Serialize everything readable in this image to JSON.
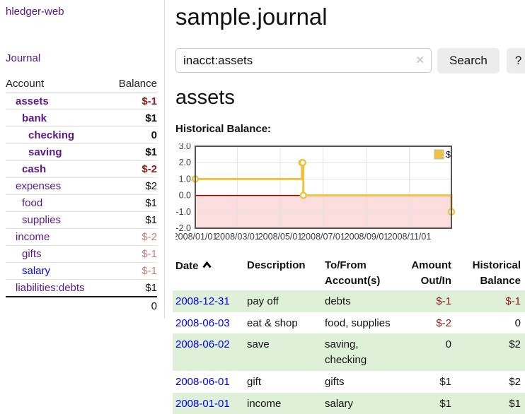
{
  "app": {
    "title": "hledger-web"
  },
  "sidebar": {
    "journal_link": "Journal",
    "accounts_table": {
      "headers": {
        "account": "Account",
        "balance": "Balance"
      },
      "rows": [
        {
          "name": "assets",
          "depth": 1,
          "bold": true,
          "balance": "$-1"
        },
        {
          "name": "bank",
          "depth": 2,
          "bold": true,
          "balance": "$1"
        },
        {
          "name": "checking",
          "depth": 3,
          "bold": true,
          "balance": "0"
        },
        {
          "name": "saving",
          "depth": 3,
          "bold": true,
          "balance": "$1"
        },
        {
          "name": "cash",
          "depth": 2,
          "bold": true,
          "balance": "$-2"
        },
        {
          "name": "expenses",
          "depth": 1,
          "bold": false,
          "balance": "$2"
        },
        {
          "name": "food",
          "depth": 2,
          "bold": false,
          "balance": "$1"
        },
        {
          "name": "supplies",
          "depth": 2,
          "bold": false,
          "balance": "$1"
        },
        {
          "name": "income",
          "depth": 1,
          "bold": false,
          "balance": "$-2"
        },
        {
          "name": "gifts",
          "depth": 2,
          "bold": false,
          "balance": "$-1"
        },
        {
          "name": "salary",
          "depth": 2,
          "bold": false,
          "balance": "$-1"
        },
        {
          "name": "liabilities:debts",
          "depth": 1,
          "bold": false,
          "balance": "$1"
        }
      ],
      "total": "0"
    }
  },
  "header": {
    "title": "sample.journal"
  },
  "search": {
    "value": "inacct:assets",
    "button_label": "Search",
    "help_label": "?"
  },
  "icons": {
    "clear": "✕"
  },
  "account_page": {
    "heading": "assets",
    "chart_label": "Historical Balance:"
  },
  "chart_data": {
    "type": "line",
    "title": "Historical Balance:",
    "series": [
      {
        "name": "$",
        "color": "#edc240",
        "steps": true,
        "x": [
          "2008-01-01",
          "2008-06-01",
          "2008-06-02",
          "2008-06-03",
          "2008-12-31"
        ],
        "y": [
          1,
          2,
          2,
          0,
          -1
        ]
      }
    ],
    "xlim": [
      "2008-01-01",
      "2008-12-31"
    ],
    "ylim": [
      -2,
      3
    ],
    "yticks": [
      3,
      2,
      1,
      0,
      -1,
      -2
    ],
    "ytick_labels": [
      "3.0",
      "2.0",
      "1.0",
      "0.0",
      "-1.0",
      "-2.0"
    ],
    "xticks": [
      "2008-01-01",
      "2008-03-01",
      "2008-05-01",
      "2008-07-01",
      "2008-09-01",
      "2008-11-01"
    ],
    "xtick_labels": [
      "2008/01/01",
      "2008/03/01",
      "2008/05/01",
      "2008/07/01",
      "2008/09/01",
      "2008/11/01"
    ],
    "legend": {
      "position": "top-right",
      "entries": [
        {
          "label": "$",
          "color": "#edc240"
        }
      ]
    },
    "grid": true,
    "negative_region_color": "#fbdddd",
    "zero_line_color": "#8b0000",
    "grid_color": "#e3e3e3",
    "border_color": "#545454"
  },
  "register_table": {
    "headers": {
      "date": "Date",
      "description": "Description",
      "accounts": "To/From Account(s)",
      "amount": "Amount Out/In",
      "balance": "Historical Balance"
    },
    "rows": [
      {
        "date": "2008-12-31",
        "description": "pay off",
        "accounts": "debts",
        "amount": "$-1",
        "balance": "$-1"
      },
      {
        "date": "2008-06-03",
        "description": "eat & shop",
        "accounts": "food, supplies",
        "amount": "$-2",
        "balance": "0"
      },
      {
        "date": "2008-06-02",
        "description": "save",
        "accounts": "saving, checking",
        "amount": "0",
        "balance": "$2"
      },
      {
        "date": "2008-06-01",
        "description": "gift",
        "accounts": "gifts",
        "amount": "$1",
        "balance": "$2"
      },
      {
        "date": "2008-01-01",
        "description": "income",
        "accounts": "salary",
        "amount": "$1",
        "balance": "$1"
      }
    ]
  }
}
